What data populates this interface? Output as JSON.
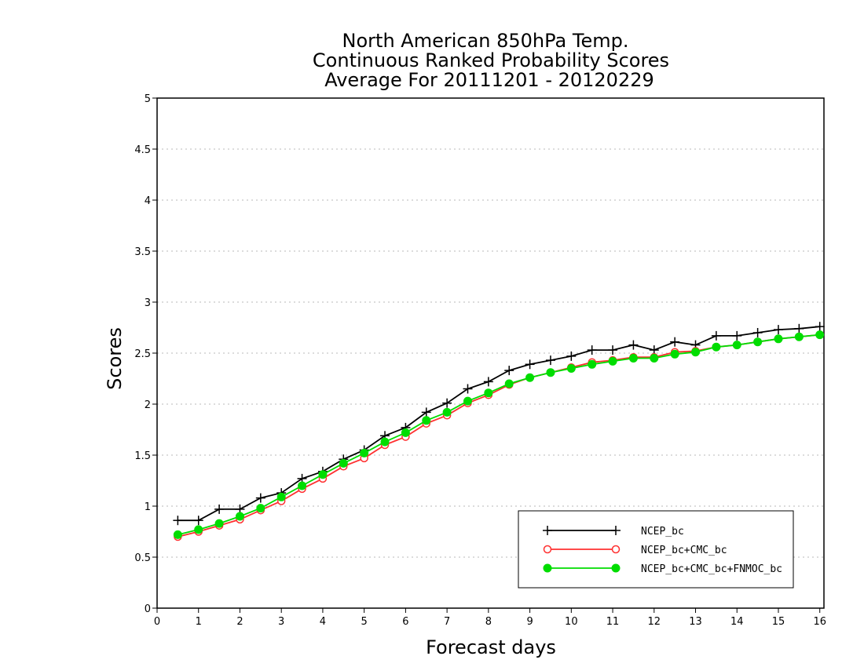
{
  "chart_data": {
    "type": "line",
    "title_lines": [
      "North American 850hPa Temp.",
      "Continuous Ranked Probability Scores",
      "Average For 20111201 - 20120229"
    ],
    "xlabel": "Forecast days",
    "ylabel": "Scores",
    "xlim": [
      0,
      16.1
    ],
    "ylim": [
      0,
      5
    ],
    "x_ticks": [
      0,
      1,
      2,
      3,
      4,
      5,
      6,
      7,
      8,
      9,
      10,
      11,
      12,
      13,
      14,
      15,
      16
    ],
    "y_ticks": [
      0,
      0.5,
      1,
      1.5,
      2,
      2.5,
      3,
      3.5,
      4,
      4.5,
      5
    ],
    "y_tick_labels": [
      "0",
      "0.5",
      "1",
      "1.5",
      "2",
      "2.5",
      "3",
      "3.5",
      "4",
      "4.5",
      "5"
    ],
    "grid": "horizontal-dotted",
    "legend_position": "bottom-right",
    "x": [
      0.5,
      1,
      1.5,
      2,
      2.5,
      3,
      3.5,
      4,
      4.5,
      5,
      5.5,
      6,
      6.5,
      7,
      7.5,
      8,
      8.5,
      9,
      9.5,
      10,
      10.5,
      11,
      11.5,
      12,
      12.5,
      13,
      13.5,
      14,
      14.5,
      15,
      15.5,
      16
    ],
    "series": [
      {
        "name": "NCEP_bc",
        "color": "#000000",
        "marker": "plus",
        "values": [
          0.86,
          0.86,
          0.97,
          0.97,
          1.08,
          1.13,
          1.27,
          1.34,
          1.46,
          1.55,
          1.69,
          1.77,
          1.92,
          2.01,
          2.15,
          2.22,
          2.33,
          2.39,
          2.43,
          2.47,
          2.53,
          2.53,
          2.58,
          2.53,
          2.61,
          2.58,
          2.67,
          2.67,
          2.7,
          2.73,
          2.74,
          2.76
        ]
      },
      {
        "name": "NCEP_bc+CMC_bc",
        "color": "#ff3030",
        "marker": "open-circle",
        "values": [
          0.7,
          0.75,
          0.81,
          0.87,
          0.96,
          1.05,
          1.17,
          1.27,
          1.39,
          1.47,
          1.6,
          1.68,
          1.81,
          1.89,
          2.01,
          2.09,
          2.19,
          2.26,
          2.31,
          2.36,
          2.41,
          2.43,
          2.46,
          2.46,
          2.51,
          2.52,
          2.56,
          2.58,
          2.61,
          2.64,
          2.66,
          2.68
        ]
      },
      {
        "name": "NCEP_bc+CMC_bc+FNMOC_bc",
        "color": "#00dd00",
        "marker": "filled-circle",
        "values": [
          0.72,
          0.77,
          0.83,
          0.9,
          0.98,
          1.09,
          1.2,
          1.31,
          1.42,
          1.52,
          1.63,
          1.72,
          1.84,
          1.92,
          2.03,
          2.11,
          2.2,
          2.26,
          2.31,
          2.35,
          2.39,
          2.42,
          2.45,
          2.45,
          2.49,
          2.51,
          2.56,
          2.58,
          2.61,
          2.64,
          2.66,
          2.68
        ]
      }
    ]
  }
}
